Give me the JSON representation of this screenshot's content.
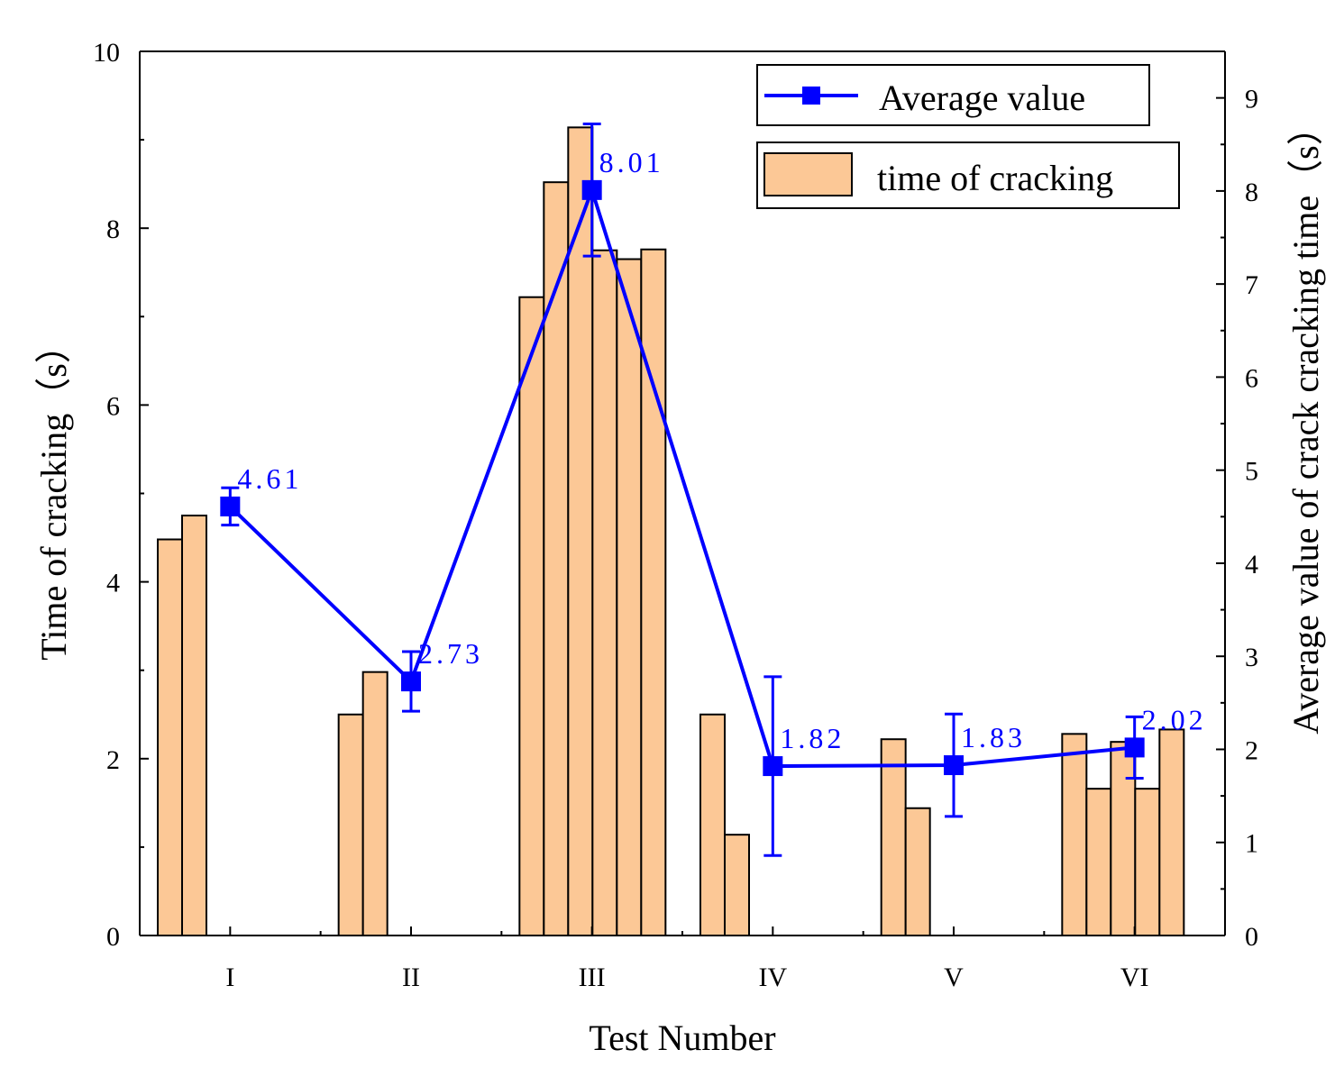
{
  "chart_data": {
    "type": "bar",
    "xlabel": "Test Number",
    "ylabel": "Time of cracking（s）",
    "y2label": "Average value of crack cracking time（s）",
    "categories": [
      "I",
      "II",
      "III",
      "IV",
      "V",
      "VI"
    ],
    "ylim": [
      0,
      10
    ],
    "y2lim": [
      0,
      9.5
    ],
    "yticks": [
      "0",
      "2",
      "4",
      "6",
      "8",
      "10"
    ],
    "y2ticks": [
      "0",
      "1",
      "2",
      "3",
      "4",
      "5",
      "6",
      "7",
      "8",
      "9"
    ],
    "bars": {
      "name": "time of cracking",
      "color": "#fcc896",
      "groups": [
        [
          4.48,
          4.75
        ],
        [
          2.5,
          2.98
        ],
        [
          7.22,
          8.52,
          9.14,
          7.75,
          7.65,
          7.76
        ],
        [
          2.5,
          1.14
        ],
        [
          2.22,
          1.44
        ],
        [
          2.28,
          1.66,
          2.19,
          1.66,
          2.33
        ]
      ]
    },
    "line": {
      "name": "Average value",
      "color": "#0000ff",
      "values": [
        4.61,
        2.73,
        8.01,
        1.82,
        1.83,
        2.02
      ],
      "errors": [
        0.2,
        0.32,
        0.71,
        0.96,
        0.55,
        0.33
      ],
      "labels": [
        "4.61",
        "2.73",
        "8.01",
        "1.82",
        "1.83",
        "2.02"
      ]
    },
    "legend": {
      "position": "top-right",
      "entries": [
        "Average value",
        "time of cracking"
      ]
    }
  }
}
